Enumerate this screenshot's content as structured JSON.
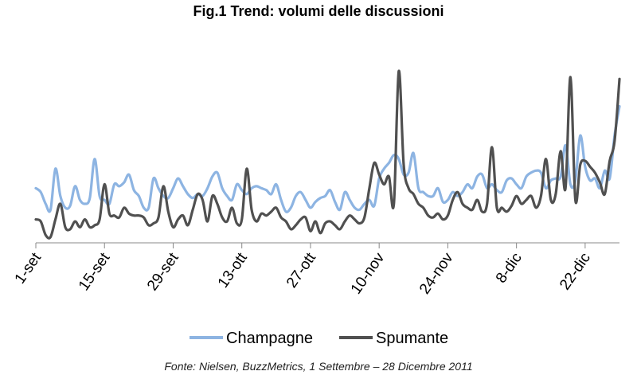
{
  "chart_data": {
    "type": "line",
    "title": "Fig.1 Trend: volumi delle discussioni",
    "source": "Fonte: Nielsen, BuzzMetrics, 1 Settembre – 28 Dicembre 2011",
    "x_ticks": [
      "1-set",
      "15-set",
      "29-set",
      "13-ott",
      "27-ott",
      "10-nov",
      "24-nov",
      "8-dic",
      "22-dic"
    ],
    "x_tick_days": [
      0,
      14,
      28,
      42,
      56,
      70,
      84,
      98,
      112
    ],
    "x_range": [
      0,
      119
    ],
    "y_range": [
      0,
      100
    ],
    "y_axis_visible": false,
    "grid": false,
    "legend_position": "bottom-center",
    "series": [
      {
        "name": "Champagne",
        "color": "#8db4e2",
        "values": [
          28,
          26,
          20,
          17,
          38,
          24,
          18,
          19,
          29,
          22,
          20,
          23,
          43,
          24,
          22,
          20,
          30,
          29,
          31,
          35,
          27,
          24,
          18,
          18,
          33,
          28,
          24,
          23,
          28,
          33,
          29,
          25,
          23,
          25,
          24,
          28,
          34,
          36,
          28,
          24,
          22,
          30,
          27,
          25,
          28,
          29,
          28,
          27,
          25,
          30,
          22,
          16,
          18,
          24,
          26,
          22,
          18,
          21,
          23,
          24,
          27,
          21,
          17,
          26,
          22,
          18,
          17,
          20,
          22,
          19,
          33,
          38,
          41,
          45,
          43,
          35,
          36,
          46,
          28,
          26,
          24,
          24,
          28,
          21,
          22,
          26,
          24,
          26,
          30,
          28,
          34,
          35,
          28,
          30,
          27,
          26,
          32,
          33,
          30,
          28,
          34,
          36,
          37,
          36,
          28,
          32,
          33,
          34,
          50,
          30,
          32,
          55,
          39,
          32,
          33,
          28,
          37,
          33,
          55,
          70
        ]
      },
      {
        "name": "Spumante",
        "color": "#505050",
        "values": [
          12,
          11,
          4,
          3,
          12,
          20,
          8,
          7,
          11,
          8,
          12,
          8,
          9,
          12,
          30,
          15,
          14,
          13,
          18,
          15,
          14,
          14,
          13,
          9,
          10,
          13,
          29,
          16,
          8,
          12,
          14,
          9,
          17,
          25,
          22,
          11,
          24,
          20,
          13,
          11,
          18,
          10,
          12,
          38,
          17,
          11,
          15,
          14,
          16,
          18,
          13,
          11,
          7,
          9,
          12,
          13,
          6,
          11,
          5,
          10,
          11,
          9,
          7,
          11,
          14,
          12,
          10,
          13,
          28,
          41,
          35,
          30,
          34,
          20,
          88,
          40,
          28,
          25,
          20,
          18,
          14,
          13,
          15,
          12,
          14,
          22,
          26,
          20,
          18,
          17,
          22,
          16,
          20,
          49,
          18,
          18,
          16,
          19,
          24,
          20,
          22,
          24,
          18,
          24,
          43,
          22,
          25,
          47,
          28,
          85,
          22,
          40,
          42,
          39,
          36,
          31,
          25,
          42,
          52,
          84
        ]
      }
    ]
  }
}
